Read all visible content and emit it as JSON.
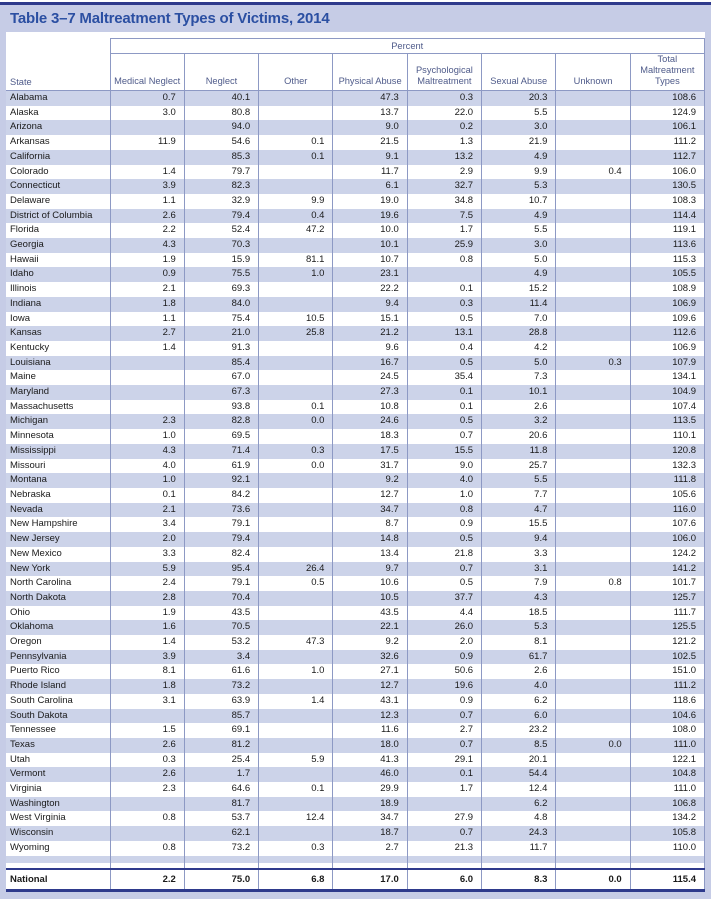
{
  "title": "Table 3–7 Maltreatment Types of Victims, 2014",
  "table": {
    "group_header": "Percent",
    "columns": [
      "State",
      "Medical Neglect",
      "Neglect",
      "Other",
      "Physical Abuse",
      "Psychological Maltreatment",
      "Sexual Abuse",
      "Unknown",
      "Total Maltreatment Types"
    ],
    "rows": [
      {
        "state": "Alabama",
        "values": [
          "0.7",
          "40.1",
          "",
          "47.3",
          "0.3",
          "20.3",
          "",
          "108.6"
        ]
      },
      {
        "state": "Alaska",
        "values": [
          "3.0",
          "80.8",
          "",
          "13.7",
          "22.0",
          "5.5",
          "",
          "124.9"
        ]
      },
      {
        "state": "Arizona",
        "values": [
          "",
          "94.0",
          "",
          "9.0",
          "0.2",
          "3.0",
          "",
          "106.1"
        ]
      },
      {
        "state": "Arkansas",
        "values": [
          "11.9",
          "54.6",
          "0.1",
          "21.5",
          "1.3",
          "21.9",
          "",
          "111.2"
        ]
      },
      {
        "state": "California",
        "values": [
          "",
          "85.3",
          "0.1",
          "9.1",
          "13.2",
          "4.9",
          "",
          "112.7"
        ]
      },
      {
        "state": "Colorado",
        "values": [
          "1.4",
          "79.7",
          "",
          "11.7",
          "2.9",
          "9.9",
          "0.4",
          "106.0"
        ]
      },
      {
        "state": "Connecticut",
        "values": [
          "3.9",
          "82.3",
          "",
          "6.1",
          "32.7",
          "5.3",
          "",
          "130.5"
        ]
      },
      {
        "state": "Delaware",
        "values": [
          "1.1",
          "32.9",
          "9.9",
          "19.0",
          "34.8",
          "10.7",
          "",
          "108.3"
        ]
      },
      {
        "state": "District of Columbia",
        "values": [
          "2.6",
          "79.4",
          "0.4",
          "19.6",
          "7.5",
          "4.9",
          "",
          "114.4"
        ]
      },
      {
        "state": "Florida",
        "values": [
          "2.2",
          "52.4",
          "47.2",
          "10.0",
          "1.7",
          "5.5",
          "",
          "119.1"
        ]
      },
      {
        "state": "Georgia",
        "values": [
          "4.3",
          "70.3",
          "",
          "10.1",
          "25.9",
          "3.0",
          "",
          "113.6"
        ]
      },
      {
        "state": "Hawaii",
        "values": [
          "1.9",
          "15.9",
          "81.1",
          "10.7",
          "0.8",
          "5.0",
          "",
          "115.3"
        ]
      },
      {
        "state": "Idaho",
        "values": [
          "0.9",
          "75.5",
          "1.0",
          "23.1",
          "",
          "4.9",
          "",
          "105.5"
        ]
      },
      {
        "state": "Illinois",
        "values": [
          "2.1",
          "69.3",
          "",
          "22.2",
          "0.1",
          "15.2",
          "",
          "108.9"
        ]
      },
      {
        "state": "Indiana",
        "values": [
          "1.8",
          "84.0",
          "",
          "9.4",
          "0.3",
          "11.4",
          "",
          "106.9"
        ]
      },
      {
        "state": "Iowa",
        "values": [
          "1.1",
          "75.4",
          "10.5",
          "15.1",
          "0.5",
          "7.0",
          "",
          "109.6"
        ]
      },
      {
        "state": "Kansas",
        "values": [
          "2.7",
          "21.0",
          "25.8",
          "21.2",
          "13.1",
          "28.8",
          "",
          "112.6"
        ]
      },
      {
        "state": "Kentucky",
        "values": [
          "1.4",
          "91.3",
          "",
          "9.6",
          "0.4",
          "4.2",
          "",
          "106.9"
        ]
      },
      {
        "state": "Louisiana",
        "values": [
          "",
          "85.4",
          "",
          "16.7",
          "0.5",
          "5.0",
          "0.3",
          "107.9"
        ]
      },
      {
        "state": "Maine",
        "values": [
          "",
          "67.0",
          "",
          "24.5",
          "35.4",
          "7.3",
          "",
          "134.1"
        ]
      },
      {
        "state": "Maryland",
        "values": [
          "",
          "67.3",
          "",
          "27.3",
          "0.1",
          "10.1",
          "",
          "104.9"
        ]
      },
      {
        "state": "Massachusetts",
        "values": [
          "",
          "93.8",
          "0.1",
          "10.8",
          "0.1",
          "2.6",
          "",
          "107.4"
        ]
      },
      {
        "state": "Michigan",
        "values": [
          "2.3",
          "82.8",
          "0.0",
          "24.6",
          "0.5",
          "3.2",
          "",
          "113.5"
        ]
      },
      {
        "state": "Minnesota",
        "values": [
          "1.0",
          "69.5",
          "",
          "18.3",
          "0.7",
          "20.6",
          "",
          "110.1"
        ]
      },
      {
        "state": "Mississippi",
        "values": [
          "4.3",
          "71.4",
          "0.3",
          "17.5",
          "15.5",
          "11.8",
          "",
          "120.8"
        ]
      },
      {
        "state": "Missouri",
        "values": [
          "4.0",
          "61.9",
          "0.0",
          "31.7",
          "9.0",
          "25.7",
          "",
          "132.3"
        ]
      },
      {
        "state": "Montana",
        "values": [
          "1.0",
          "92.1",
          "",
          "9.2",
          "4.0",
          "5.5",
          "",
          "111.8"
        ]
      },
      {
        "state": "Nebraska",
        "values": [
          "0.1",
          "84.2",
          "",
          "12.7",
          "1.0",
          "7.7",
          "",
          "105.6"
        ]
      },
      {
        "state": "Nevada",
        "values": [
          "2.1",
          "73.6",
          "",
          "34.7",
          "0.8",
          "4.7",
          "",
          "116.0"
        ]
      },
      {
        "state": "New Hampshire",
        "values": [
          "3.4",
          "79.1",
          "",
          "8.7",
          "0.9",
          "15.5",
          "",
          "107.6"
        ]
      },
      {
        "state": "New Jersey",
        "values": [
          "2.0",
          "79.4",
          "",
          "14.8",
          "0.5",
          "9.4",
          "",
          "106.0"
        ]
      },
      {
        "state": "New Mexico",
        "values": [
          "3.3",
          "82.4",
          "",
          "13.4",
          "21.8",
          "3.3",
          "",
          "124.2"
        ]
      },
      {
        "state": "New York",
        "values": [
          "5.9",
          "95.4",
          "26.4",
          "9.7",
          "0.7",
          "3.1",
          "",
          "141.2"
        ]
      },
      {
        "state": "North Carolina",
        "values": [
          "2.4",
          "79.1",
          "0.5",
          "10.6",
          "0.5",
          "7.9",
          "0.8",
          "101.7"
        ]
      },
      {
        "state": "North Dakota",
        "values": [
          "2.8",
          "70.4",
          "",
          "10.5",
          "37.7",
          "4.3",
          "",
          "125.7"
        ]
      },
      {
        "state": "Ohio",
        "values": [
          "1.9",
          "43.5",
          "",
          "43.5",
          "4.4",
          "18.5",
          "",
          "111.7"
        ]
      },
      {
        "state": "Oklahoma",
        "values": [
          "1.6",
          "70.5",
          "",
          "22.1",
          "26.0",
          "5.3",
          "",
          "125.5"
        ]
      },
      {
        "state": "Oregon",
        "values": [
          "1.4",
          "53.2",
          "47.3",
          "9.2",
          "2.0",
          "8.1",
          "",
          "121.2"
        ]
      },
      {
        "state": "Pennsylvania",
        "values": [
          "3.9",
          "3.4",
          "",
          "32.6",
          "0.9",
          "61.7",
          "",
          "102.5"
        ]
      },
      {
        "state": "Puerto Rico",
        "values": [
          "8.1",
          "61.6",
          "1.0",
          "27.1",
          "50.6",
          "2.6",
          "",
          "151.0"
        ]
      },
      {
        "state": "Rhode Island",
        "values": [
          "1.8",
          "73.2",
          "",
          "12.7",
          "19.6",
          "4.0",
          "",
          "111.2"
        ]
      },
      {
        "state": "South Carolina",
        "values": [
          "3.1",
          "63.9",
          "1.4",
          "43.1",
          "0.9",
          "6.2",
          "",
          "118.6"
        ]
      },
      {
        "state": "South Dakota",
        "values": [
          "",
          "85.7",
          "",
          "12.3",
          "0.7",
          "6.0",
          "",
          "104.6"
        ]
      },
      {
        "state": "Tennessee",
        "values": [
          "1.5",
          "69.1",
          "",
          "11.6",
          "2.7",
          "23.2",
          "",
          "108.0"
        ]
      },
      {
        "state": "Texas",
        "values": [
          "2.6",
          "81.2",
          "",
          "18.0",
          "0.7",
          "8.5",
          "0.0",
          "111.0"
        ]
      },
      {
        "state": "Utah",
        "values": [
          "0.3",
          "25.4",
          "5.9",
          "41.3",
          "29.1",
          "20.1",
          "",
          "122.1"
        ]
      },
      {
        "state": "Vermont",
        "values": [
          "2.6",
          "1.7",
          "",
          "46.0",
          "0.1",
          "54.4",
          "",
          "104.8"
        ]
      },
      {
        "state": "Virginia",
        "values": [
          "2.3",
          "64.6",
          "0.1",
          "29.9",
          "1.7",
          "12.4",
          "",
          "111.0"
        ]
      },
      {
        "state": "Washington",
        "values": [
          "",
          "81.7",
          "",
          "18.9",
          "",
          "6.2",
          "",
          "106.8"
        ]
      },
      {
        "state": "West Virginia",
        "values": [
          "0.8",
          "53.7",
          "12.4",
          "34.7",
          "27.9",
          "4.8",
          "",
          "134.2"
        ]
      },
      {
        "state": "Wisconsin",
        "values": [
          "",
          "62.1",
          "",
          "18.7",
          "0.7",
          "24.3",
          "",
          "105.8"
        ]
      },
      {
        "state": "Wyoming",
        "values": [
          "0.8",
          "73.2",
          "0.3",
          "2.7",
          "21.3",
          "11.7",
          "",
          "110.0"
        ]
      }
    ],
    "national": {
      "state": "National",
      "values": [
        "2.2",
        "75.0",
        "6.8",
        "17.0",
        "6.0",
        "8.3",
        "0.0",
        "115.4"
      ]
    }
  },
  "colors": {
    "navy_rule": "#2e3a8c",
    "band_bg": "#c6cce6",
    "title_text": "#2b4fa2",
    "header_text": "#4f5b8a",
    "grid_line": "#8d99c4",
    "row_alt": "#ccd3e9",
    "data_text": "#1a1a1a"
  }
}
